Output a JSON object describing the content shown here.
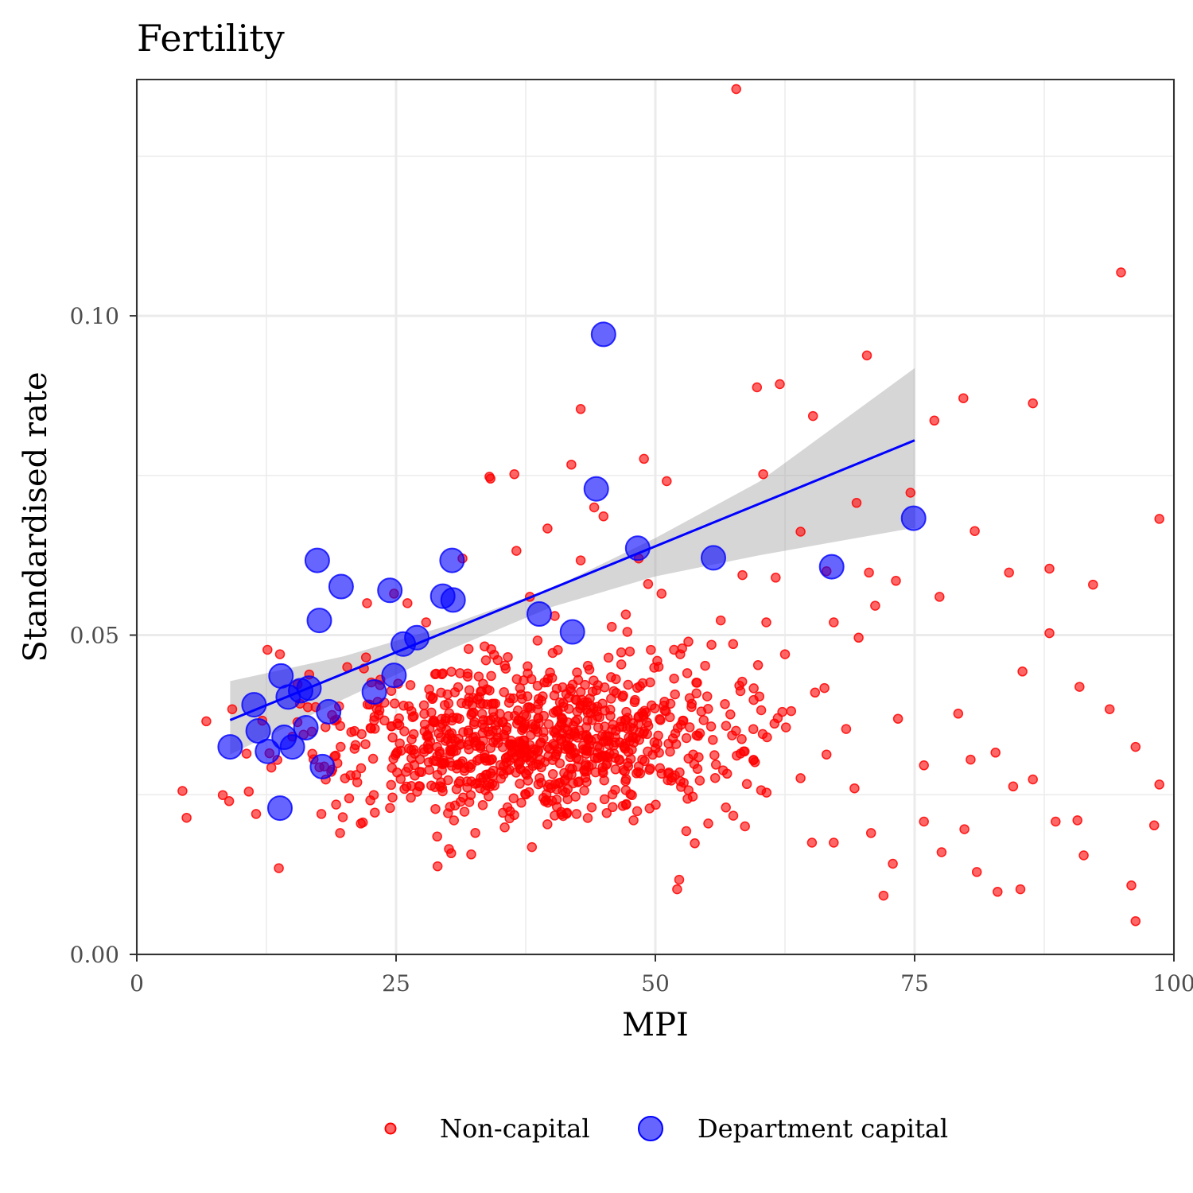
{
  "chart_data": {
    "type": "scatter",
    "title": "Fertility",
    "xlabel": "MPI",
    "ylabel": "Standardised rate",
    "xlim": [
      0,
      100
    ],
    "ylim": [
      0,
      0.137
    ],
    "x_ticks": [
      0,
      25,
      50,
      75,
      100
    ],
    "x_tick_labels": [
      "0",
      "25",
      "50",
      "75",
      "100"
    ],
    "y_ticks": [
      0,
      0.05,
      0.1
    ],
    "y_tick_labels": [
      "0.00",
      "0.05",
      "0.10"
    ],
    "grid": true,
    "legend_position": "bottom",
    "series": [
      {
        "name": "Non-capital",
        "color": "#ff0000",
        "points_listed": [
          [
            57.8,
            0.1355
          ],
          [
            94.9,
            0.1068
          ],
          [
            98.6,
            0.0682
          ],
          [
            70.4,
            0.0938
          ],
          [
            62.0,
            0.0893
          ],
          [
            59.8,
            0.0888
          ],
          [
            79.7,
            0.0871
          ],
          [
            86.4,
            0.0863
          ],
          [
            42.8,
            0.0854
          ],
          [
            65.2,
            0.0843
          ],
          [
            76.9,
            0.0836
          ],
          [
            48.9,
            0.0776
          ],
          [
            41.9,
            0.0767
          ],
          [
            36.4,
            0.0752
          ],
          [
            34.1,
            0.0745
          ],
          [
            51.1,
            0.0741
          ],
          [
            60.4,
            0.0752
          ],
          [
            64.0,
            0.0662
          ],
          [
            80.8,
            0.0663
          ],
          [
            69.4,
            0.0707
          ],
          [
            74.6,
            0.0723
          ],
          [
            88.0,
            0.0604
          ],
          [
            92.2,
            0.0579
          ],
          [
            84.1,
            0.0598
          ],
          [
            66.5,
            0.06
          ],
          [
            70.6,
            0.0598
          ],
          [
            73.2,
            0.0585
          ],
          [
            77.4,
            0.056
          ],
          [
            88.0,
            0.0503
          ],
          [
            71.2,
            0.0546
          ],
          [
            67.2,
            0.052
          ],
          [
            69.6,
            0.0496
          ],
          [
            85.4,
            0.0443
          ],
          [
            90.9,
            0.0419
          ],
          [
            93.8,
            0.0384
          ],
          [
            79.2,
            0.0377
          ],
          [
            73.4,
            0.0369
          ],
          [
            80.4,
            0.0305
          ],
          [
            82.8,
            0.0316
          ],
          [
            88.6,
            0.0208
          ],
          [
            91.3,
            0.0155
          ],
          [
            86.4,
            0.0274
          ],
          [
            95.9,
            0.0108
          ],
          [
            96.3,
            0.0052
          ],
          [
            98.6,
            0.0266
          ],
          [
            83.0,
            0.0098
          ],
          [
            85.2,
            0.0102
          ],
          [
            72.9,
            0.0142
          ],
          [
            72.0,
            0.0092
          ],
          [
            75.9,
            0.0208
          ],
          [
            77.6,
            0.016
          ],
          [
            79.8,
            0.0196
          ],
          [
            81.0,
            0.0129
          ],
          [
            84.5,
            0.0263
          ],
          [
            90.7,
            0.021
          ],
          [
            96.3,
            0.0325
          ],
          [
            98.1,
            0.0202
          ],
          [
            75.9,
            0.0296
          ],
          [
            70.8,
            0.019
          ],
          [
            67.2,
            0.0175
          ],
          [
            65.1,
            0.0175
          ],
          [
            4.4,
            0.0256
          ],
          [
            4.8,
            0.0214
          ],
          [
            6.7,
            0.0365
          ],
          [
            8.9,
            0.024
          ],
          [
            9.2,
            0.0384
          ],
          [
            10.8,
            0.0255
          ],
          [
            11.5,
            0.022
          ],
          [
            12.6,
            0.0477
          ],
          [
            13.8,
            0.047
          ],
          [
            13.7,
            0.0135
          ],
          [
            15.5,
            0.0423
          ],
          [
            17.8,
            0.022
          ],
          [
            19.6,
            0.019
          ],
          [
            21.6,
            0.0205
          ],
          [
            22.1,
            0.0465
          ],
          [
            22.2,
            0.055
          ],
          [
            24.8,
            0.0565
          ],
          [
            26.1,
            0.055
          ],
          [
            25.2,
            0.0424
          ],
          [
            27.9,
            0.052
          ],
          [
            29.0,
            0.0138
          ],
          [
            30.1,
            0.0165
          ],
          [
            31.4,
            0.062
          ],
          [
            34.0,
            0.0748
          ],
          [
            36.6,
            0.0632
          ],
          [
            37.9,
            0.056
          ],
          [
            38.1,
            0.0168
          ],
          [
            39.6,
            0.0667
          ],
          [
            40.3,
            0.053
          ],
          [
            42.8,
            0.0617
          ],
          [
            44.1,
            0.07
          ],
          [
            45.0,
            0.0686
          ],
          [
            45.8,
            0.0513
          ],
          [
            47.3,
            0.0505
          ],
          [
            48.4,
            0.062
          ],
          [
            49.3,
            0.058
          ],
          [
            50.6,
            0.0565
          ],
          [
            51.8,
            0.0477
          ],
          [
            52.3,
            0.0117
          ],
          [
            52.1,
            0.0102
          ],
          [
            53.8,
            0.0174
          ],
          [
            55.1,
            0.0205
          ],
          [
            56.3,
            0.0523
          ],
          [
            57.5,
            0.0486
          ],
          [
            58.4,
            0.0594
          ],
          [
            59.9,
            0.0453
          ],
          [
            60.7,
            0.052
          ],
          [
            61.6,
            0.059
          ],
          [
            62.5,
            0.047
          ],
          [
            63.1,
            0.0381
          ],
          [
            64.0,
            0.0276
          ],
          [
            65.4,
            0.041
          ],
          [
            66.5,
            0.0313
          ],
          [
            68.4,
            0.0353
          ],
          [
            69.2,
            0.026
          ],
          [
            12.1,
            0.0366
          ],
          [
            15.0,
            0.0341
          ],
          [
            18.2,
            0.0356
          ],
          [
            21.0,
            0.0322
          ],
          [
            23.4,
            0.0382
          ],
          [
            26.7,
            0.0345
          ],
          [
            28.2,
            0.0289
          ],
          [
            30.8,
            0.0319
          ],
          [
            33.5,
            0.0355
          ],
          [
            35.9,
            0.0394
          ],
          [
            38.5,
            0.0298
          ],
          [
            40.6,
            0.0382
          ],
          [
            43.0,
            0.0343
          ],
          [
            45.6,
            0.0314
          ],
          [
            48.0,
            0.0395
          ],
          [
            50.2,
            0.033
          ],
          [
            52.7,
            0.0366
          ],
          [
            55.0,
            0.0404
          ],
          [
            57.4,
            0.0343
          ],
          [
            59.6,
            0.0301
          ],
          [
            61.8,
            0.037
          ],
          [
            30.2,
            0.0231
          ],
          [
            33.1,
            0.026
          ],
          [
            36.0,
            0.0224
          ],
          [
            39.2,
            0.0245
          ],
          [
            42.4,
            0.022
          ],
          [
            45.1,
            0.0243
          ],
          [
            47.9,
            0.021
          ],
          [
            53.2,
            0.0257
          ],
          [
            56.8,
            0.023
          ],
          [
            27.3,
            0.0263
          ],
          [
            24.6,
            0.0292
          ],
          [
            31.9,
            0.0435
          ],
          [
            34.8,
            0.0461
          ],
          [
            37.7,
            0.044
          ],
          [
            40.1,
            0.0472
          ],
          [
            43.5,
            0.0452
          ],
          [
            46.2,
            0.0431
          ],
          [
            49.5,
            0.0426
          ],
          [
            52.4,
            0.047
          ],
          [
            54.8,
            0.0452
          ],
          [
            58.1,
            0.0421
          ],
          [
            28.5,
            0.04
          ],
          [
            33.0,
            0.0403
          ],
          [
            41.4,
            0.0408
          ],
          [
            46.7,
            0.0365
          ],
          [
            51.3,
            0.0285
          ],
          [
            55.7,
            0.0312
          ],
          [
            60.2,
            0.0257
          ]
        ],
        "additional_points": "about 850 further non-capital points concentrated between MPI 10–70 and rates 0.015–0.060"
      },
      {
        "name": "Department capital",
        "color": "#0000ff",
        "points": [
          [
            45.0,
            0.0971
          ],
          [
            44.3,
            0.0729
          ],
          [
            74.9,
            0.0683
          ],
          [
            48.3,
            0.0636
          ],
          [
            55.6,
            0.0621
          ],
          [
            67.0,
            0.0607
          ],
          [
            17.4,
            0.0617
          ],
          [
            30.4,
            0.0617
          ],
          [
            19.7,
            0.0576
          ],
          [
            24.4,
            0.057
          ],
          [
            29.5,
            0.0561
          ],
          [
            30.5,
            0.0555
          ],
          [
            38.8,
            0.0533
          ],
          [
            17.6,
            0.0523
          ],
          [
            42.0,
            0.0505
          ],
          [
            27.0,
            0.0496
          ],
          [
            25.7,
            0.0486
          ],
          [
            13.9,
            0.0436
          ],
          [
            24.8,
            0.0437
          ],
          [
            16.6,
            0.0417
          ],
          [
            15.8,
            0.0413
          ],
          [
            14.6,
            0.0403
          ],
          [
            22.9,
            0.0411
          ],
          [
            11.3,
            0.0391
          ],
          [
            18.5,
            0.038
          ],
          [
            11.7,
            0.035
          ],
          [
            16.3,
            0.0355
          ],
          [
            14.2,
            0.034
          ],
          [
            9.0,
            0.0325
          ],
          [
            12.6,
            0.0318
          ],
          [
            15.0,
            0.0325
          ],
          [
            17.9,
            0.0294
          ],
          [
            13.8,
            0.0229
          ]
        ]
      }
    ],
    "fit_line": {
      "method": "linear regression with 95% confidence band",
      "color": "#0000ff",
      "x": [
        9.0,
        75.0
      ],
      "y": [
        0.0367,
        0.0805
      ],
      "band": {
        "x": [
          9.0,
          20.0,
          30.0,
          40.0,
          50.0,
          60.0,
          75.0
        ],
        "lower": [
          0.0313,
          0.04,
          0.0476,
          0.0544,
          0.0592,
          0.0625,
          0.0668
        ],
        "upper": [
          0.0428,
          0.0467,
          0.0515,
          0.0573,
          0.0652,
          0.074,
          0.0918
        ]
      }
    }
  }
}
